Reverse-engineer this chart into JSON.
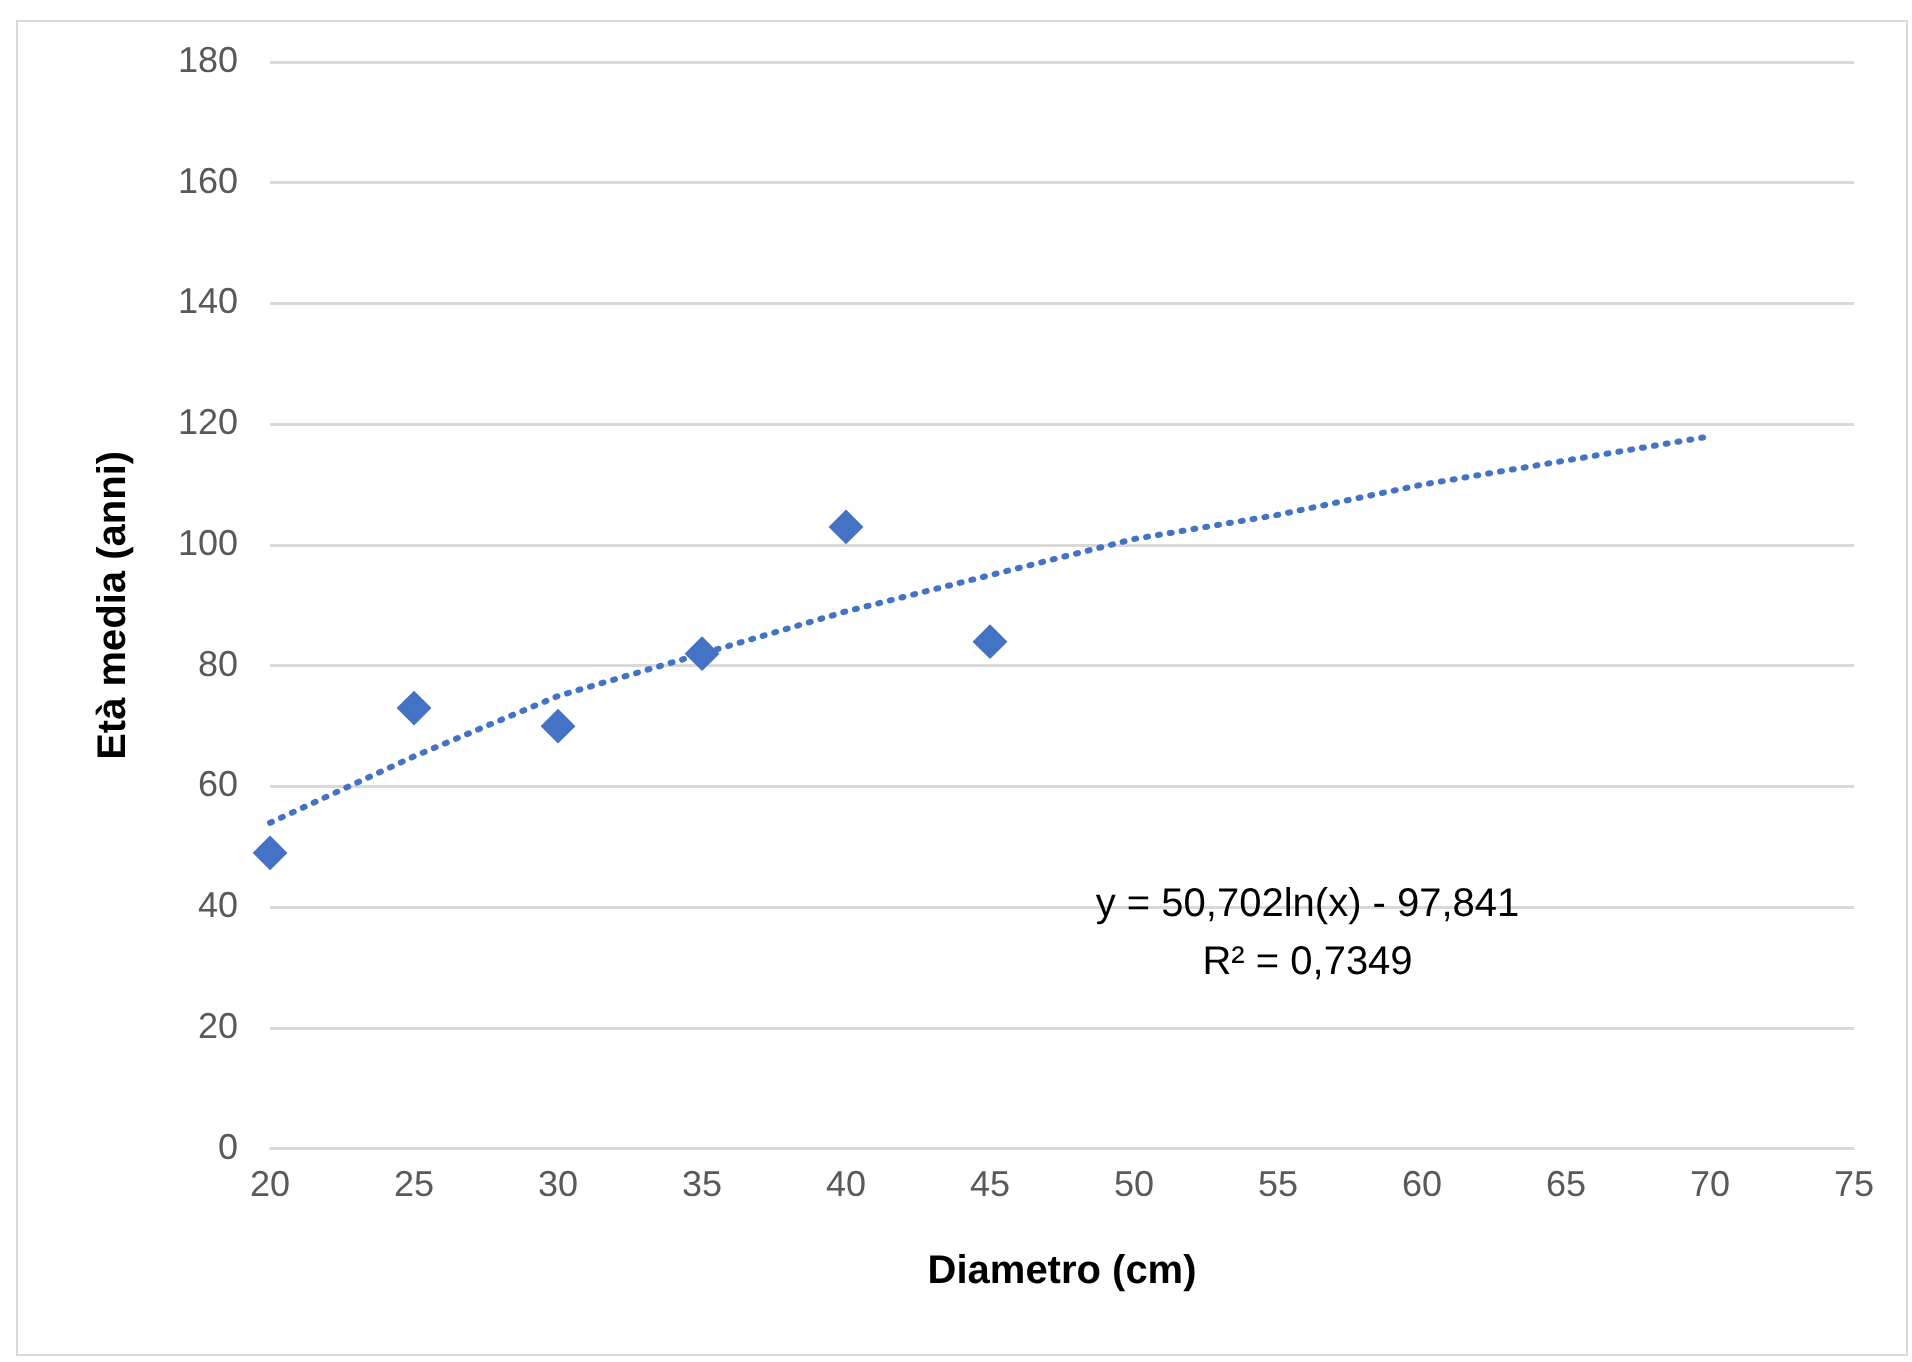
{
  "chart_data": {
    "type": "scatter",
    "xlabel": "Diametro (cm)",
    "ylabel": "Età media (anni)",
    "marker": "diamond",
    "grid": "y",
    "legend": false,
    "xlim": [
      20,
      75
    ],
    "xticks": [
      20,
      25,
      30,
      35,
      40,
      45,
      50,
      55,
      60,
      65,
      70,
      75
    ],
    "ylim": [
      0,
      180
    ],
    "yticks": [
      0,
      20,
      40,
      60,
      80,
      100,
      120,
      140,
      160,
      180
    ],
    "series": [
      {
        "color": "#4472c4",
        "x": [
          20,
          25,
          30,
          35,
          40,
          45
        ],
        "values": [
          49,
          73,
          70,
          82,
          103,
          84
        ]
      },
      {
        "type": "line",
        "line_style": "dotted",
        "marker": "none",
        "color": "#4472c4",
        "x": [
          20,
          25,
          30,
          35,
          40,
          45,
          50,
          55,
          60,
          65,
          70
        ],
        "values": [
          54,
          65,
          75,
          82,
          89,
          95,
          101,
          105,
          110,
          114,
          118
        ]
      }
    ],
    "annotations": [
      "y = 50,702ln(x) - 97,841",
      "R² = 0,7349"
    ]
  }
}
